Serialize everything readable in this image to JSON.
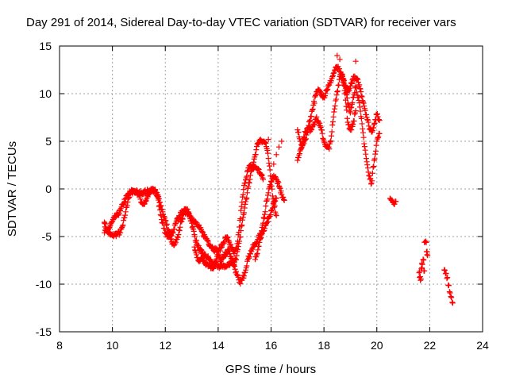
{
  "chart_data": {
    "type": "scatter",
    "title": "Day 291 of 2014, Sidereal Day-to-day VTEC variation (SDTVAR) for receiver vars",
    "xlabel": "GPS time / hours",
    "ylabel": "SDTVAR / TECUs",
    "xlim": [
      8,
      24
    ],
    "ylim": [
      -15,
      15
    ],
    "xticks": [
      "8",
      "10",
      "12",
      "14",
      "16",
      "18",
      "20",
      "22",
      "24"
    ],
    "yticks": [
      "-15",
      "-10",
      "-5",
      "0",
      "5",
      "10",
      "15"
    ],
    "grid": true,
    "marker": "+",
    "color": "#ff0000",
    "series": [
      {
        "name": "SDTVAR",
        "trace_lower": [
          [
            9.7,
            -3.6
          ],
          [
            9.8,
            -4.3
          ],
          [
            9.9,
            -4.8
          ],
          [
            10.0,
            -4.9
          ],
          [
            10.1,
            -4.8
          ],
          [
            10.2,
            -4.7
          ],
          [
            10.3,
            -4.6
          ],
          [
            10.4,
            -3.8
          ],
          [
            10.5,
            -2.4
          ],
          [
            10.6,
            -1.0
          ],
          [
            10.7,
            -0.4
          ],
          [
            10.8,
            -0.2
          ],
          [
            10.9,
            -0.3
          ],
          [
            11.0,
            -0.6
          ],
          [
            11.1,
            -1.4
          ],
          [
            11.2,
            -1.6
          ],
          [
            11.3,
            -1.0
          ],
          [
            11.4,
            -0.5
          ],
          [
            11.5,
            -0.2
          ],
          [
            11.6,
            -0.1
          ],
          [
            11.7,
            -0.8
          ],
          [
            11.8,
            -2.2
          ],
          [
            11.9,
            -3.6
          ],
          [
            12.0,
            -4.6
          ],
          [
            12.1,
            -5.0
          ],
          [
            12.2,
            -5.3
          ],
          [
            12.3,
            -5.7
          ],
          [
            12.4,
            -5.6
          ],
          [
            12.5,
            -4.8
          ],
          [
            12.6,
            -3.4
          ],
          [
            12.7,
            -2.6
          ],
          [
            12.8,
            -2.2
          ],
          [
            12.9,
            -2.6
          ],
          [
            13.0,
            -3.6
          ],
          [
            13.1,
            -4.8
          ],
          [
            13.2,
            -5.8
          ],
          [
            13.3,
            -6.4
          ],
          [
            13.4,
            -6.8
          ],
          [
            13.5,
            -7.0
          ],
          [
            13.6,
            -7.2
          ],
          [
            13.7,
            -7.5
          ],
          [
            13.8,
            -7.9
          ],
          [
            13.9,
            -8.0
          ],
          [
            14.0,
            -8.1
          ],
          [
            14.1,
            -8.2
          ],
          [
            14.2,
            -8.0
          ],
          [
            14.3,
            -8.2
          ],
          [
            14.4,
            -7.9
          ],
          [
            14.5,
            -7.6
          ],
          [
            14.6,
            -8.0
          ],
          [
            14.7,
            -9.0
          ],
          [
            14.8,
            -9.8
          ],
          [
            14.9,
            -9.6
          ],
          [
            15.0,
            -8.8
          ],
          [
            15.1,
            -7.6
          ],
          [
            15.2,
            -6.8
          ],
          [
            15.3,
            -6.2
          ],
          [
            15.4,
            -5.8
          ],
          [
            15.5,
            -5.3
          ],
          [
            15.6,
            -4.8
          ],
          [
            15.7,
            -4.4
          ],
          [
            15.8,
            -3.8
          ],
          [
            15.9,
            -3.1
          ],
          [
            16.0,
            -2.3
          ],
          [
            16.1,
            -1.6
          ],
          [
            16.2,
            -1.0
          ]
        ],
        "trace_upper": [
          [
            9.7,
            -4.6
          ],
          [
            9.8,
            -4.4
          ],
          [
            9.9,
            -4.0
          ],
          [
            10.0,
            -3.4
          ],
          [
            10.1,
            -3.0
          ],
          [
            10.2,
            -2.7
          ],
          [
            10.3,
            -2.3
          ],
          [
            10.4,
            -1.6
          ],
          [
            10.5,
            -1.0
          ],
          [
            10.6,
            -0.6
          ],
          [
            10.7,
            -0.3
          ],
          [
            10.8,
            -0.2
          ],
          [
            10.9,
            -0.3
          ],
          [
            11.0,
            -0.5
          ],
          [
            11.1,
            -0.4
          ],
          [
            11.2,
            -0.3
          ],
          [
            11.3,
            -0.3
          ],
          [
            11.4,
            -0.2
          ],
          [
            11.5,
            -0.1
          ],
          [
            11.6,
            -0.2
          ],
          [
            11.7,
            -0.6
          ],
          [
            11.8,
            -1.4
          ],
          [
            11.9,
            -2.4
          ],
          [
            12.0,
            -3.3
          ],
          [
            12.1,
            -4.3
          ],
          [
            12.2,
            -4.8
          ],
          [
            12.3,
            -4.6
          ],
          [
            12.4,
            -3.6
          ],
          [
            12.5,
            -3.0
          ],
          [
            12.6,
            -2.6
          ],
          [
            12.7,
            -2.3
          ],
          [
            12.8,
            -2.4
          ],
          [
            12.9,
            -2.6
          ],
          [
            13.0,
            -3.0
          ],
          [
            13.1,
            -3.4
          ],
          [
            13.2,
            -3.8
          ],
          [
            13.3,
            -4.1
          ],
          [
            13.4,
            -4.6
          ],
          [
            13.5,
            -5.0
          ],
          [
            13.6,
            -5.4
          ],
          [
            13.7,
            -5.9
          ],
          [
            13.8,
            -6.2
          ],
          [
            13.9,
            -6.4
          ],
          [
            14.0,
            -6.5
          ],
          [
            14.1,
            -6.2
          ],
          [
            14.2,
            -5.6
          ],
          [
            14.3,
            -5.1
          ],
          [
            14.4,
            -5.4
          ],
          [
            14.5,
            -6.2
          ],
          [
            14.6,
            -6.8
          ],
          [
            14.7,
            -6.3
          ],
          [
            14.8,
            -4.0
          ],
          [
            14.9,
            -1.4
          ],
          [
            15.0,
            0.6
          ],
          [
            15.1,
            1.8
          ],
          [
            15.2,
            2.4
          ],
          [
            15.3,
            2.1
          ],
          [
            15.4,
            2.3
          ],
          [
            15.5,
            2.1
          ],
          [
            15.6,
            1.6
          ],
          [
            15.7,
            1.0
          ]
        ],
        "trace_mid": [
          [
            13.1,
            -6.1
          ],
          [
            13.2,
            -7.2
          ],
          [
            13.3,
            -7.5
          ],
          [
            13.4,
            -7.3
          ],
          [
            13.5,
            -7.7
          ],
          [
            13.6,
            -7.9
          ],
          [
            13.7,
            -8.1
          ],
          [
            13.8,
            -8.3
          ],
          [
            13.9,
            -7.7
          ],
          [
            14.0,
            -6.9
          ],
          [
            14.1,
            -7.6
          ],
          [
            14.2,
            -7.2
          ],
          [
            14.3,
            -6.7
          ],
          [
            14.4,
            -6.5
          ],
          [
            14.5,
            -7.3
          ],
          [
            14.6,
            -7.9
          ],
          [
            14.7,
            -7.0
          ],
          [
            14.8,
            -5.5
          ],
          [
            14.9,
            -3.8
          ],
          [
            15.0,
            -2.0
          ],
          [
            15.1,
            -0.4
          ],
          [
            15.2,
            1.0
          ],
          [
            15.3,
            2.5
          ],
          [
            15.4,
            3.6
          ],
          [
            15.5,
            4.8
          ],
          [
            15.6,
            5.2
          ],
          [
            15.7,
            5.0
          ],
          [
            15.8,
            4.8
          ],
          [
            15.9,
            3.2
          ],
          [
            16.0,
            0.8
          ],
          [
            16.1,
            -1.4
          ],
          [
            16.2,
            -2.8
          ]
        ],
        "trace_late": [
          [
            15.4,
            -7.4
          ],
          [
            15.5,
            -6.4
          ],
          [
            15.6,
            -5.2
          ],
          [
            15.7,
            -3.6
          ],
          [
            15.8,
            -1.8
          ],
          [
            15.9,
            -0.4
          ],
          [
            16.0,
            0.8
          ],
          [
            16.1,
            1.4
          ],
          [
            16.2,
            1.0
          ],
          [
            16.3,
            0.3
          ],
          [
            16.4,
            -0.6
          ],
          [
            16.5,
            -1.2
          ]
        ],
        "trace_evening": [
          [
            17.0,
            6.2
          ],
          [
            17.1,
            5.0
          ],
          [
            17.2,
            4.6
          ],
          [
            17.3,
            5.2
          ],
          [
            17.4,
            6.4
          ],
          [
            17.5,
            7.6
          ],
          [
            17.6,
            8.8
          ],
          [
            17.7,
            9.9
          ],
          [
            17.8,
            10.4
          ],
          [
            17.9,
            10.1
          ],
          [
            18.0,
            9.6
          ],
          [
            18.1,
            10.4
          ],
          [
            18.2,
            10.9
          ],
          [
            18.3,
            11.6
          ],
          [
            18.4,
            12.4
          ],
          [
            18.5,
            12.8
          ],
          [
            18.6,
            12.3
          ],
          [
            18.7,
            11.6
          ],
          [
            18.8,
            10.9
          ],
          [
            18.9,
            10.2
          ],
          [
            19.0,
            10.8
          ],
          [
            19.1,
            11.6
          ],
          [
            19.2,
            11.6
          ],
          [
            19.3,
            11.2
          ],
          [
            19.4,
            10.2
          ],
          [
            19.5,
            9.0
          ],
          [
            19.6,
            7.8
          ],
          [
            19.7,
            6.6
          ],
          [
            19.8,
            6.0
          ],
          [
            19.9,
            6.8
          ],
          [
            20.0,
            7.8
          ],
          [
            20.1,
            7.2
          ]
        ],
        "trace_evening2": [
          [
            17.0,
            3.0
          ],
          [
            17.1,
            4.0
          ],
          [
            17.2,
            5.0
          ],
          [
            17.3,
            6.0
          ],
          [
            17.4,
            6.4
          ],
          [
            17.5,
            6.2
          ],
          [
            17.6,
            6.8
          ],
          [
            17.7,
            7.4
          ],
          [
            17.8,
            7.0
          ],
          [
            17.9,
            6.2
          ],
          [
            18.0,
            5.0
          ],
          [
            18.1,
            4.4
          ],
          [
            18.2,
            4.2
          ],
          [
            18.3,
            6.0
          ],
          [
            18.4,
            8.4
          ],
          [
            18.5,
            10.2
          ],
          [
            18.6,
            11.8
          ],
          [
            18.7,
            12.0
          ],
          [
            18.8,
            10.8
          ],
          [
            18.9,
            9.0
          ],
          [
            19.0,
            8.0
          ],
          [
            19.1,
            9.6
          ],
          [
            19.2,
            10.8
          ],
          [
            19.3,
            9.6
          ],
          [
            19.4,
            7.6
          ],
          [
            19.5,
            5.4
          ],
          [
            19.6,
            3.2
          ],
          [
            19.7,
            1.4
          ],
          [
            19.8,
            0.6
          ],
          [
            19.9,
            3.0
          ],
          [
            20.0,
            5.0
          ],
          [
            20.1,
            5.8
          ]
        ],
        "trace_dip": [
          [
            18.7,
            11.8
          ],
          [
            18.8,
            10.0
          ],
          [
            18.9,
            7.0
          ],
          [
            19.0,
            6.2
          ],
          [
            19.1,
            6.8
          ],
          [
            19.2,
            8.2
          ]
        ],
        "isolated": [
          [
            9.7,
            -3.5
          ],
          [
            15.9,
            5.2
          ],
          [
            16.1,
            2.6
          ],
          [
            16.2,
            3.6
          ],
          [
            16.3,
            4.4
          ],
          [
            16.4,
            5.0
          ],
          [
            18.5,
            14.0
          ],
          [
            18.6,
            13.6
          ],
          [
            19.2,
            13.4
          ]
        ],
        "late_clusters": [
          [
            20.5,
            -1.0
          ],
          [
            20.55,
            -1.2
          ],
          [
            20.6,
            -1.4
          ],
          [
            20.65,
            -1.6
          ],
          [
            20.7,
            -1.3
          ],
          [
            21.6,
            -8.8
          ],
          [
            21.62,
            -9.3
          ],
          [
            21.65,
            -9.6
          ],
          [
            21.68,
            -8.4
          ],
          [
            21.7,
            -7.8
          ],
          [
            21.75,
            -7.4
          ],
          [
            21.78,
            -8.6
          ],
          [
            21.8,
            -5.6
          ],
          [
            21.85,
            -5.5
          ],
          [
            21.88,
            -6.6
          ],
          [
            21.9,
            -6.9
          ],
          [
            22.55,
            -8.5
          ],
          [
            22.6,
            -8.9
          ],
          [
            22.65,
            -9.4
          ],
          [
            22.7,
            -10.1
          ],
          [
            22.75,
            -10.8
          ],
          [
            22.8,
            -11.3
          ],
          [
            22.85,
            -11.9
          ]
        ]
      }
    ]
  }
}
